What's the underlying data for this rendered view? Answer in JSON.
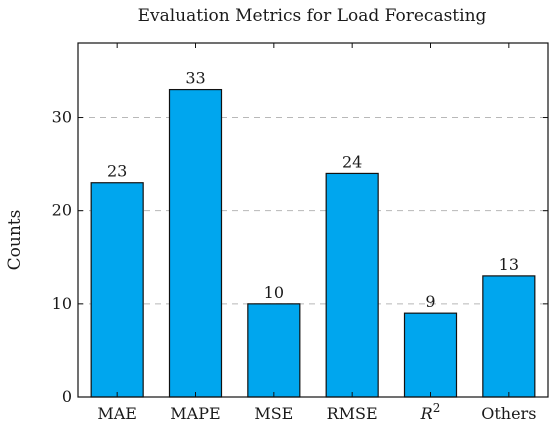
{
  "chart_data": {
    "type": "bar",
    "title": "Evaluation Metrics for Load Forecasting",
    "xlabel": "",
    "ylabel": "Counts",
    "categories": [
      "MAE",
      "MAPE",
      "MSE",
      "RMSE",
      "R2",
      "Others"
    ],
    "values": [
      23,
      33,
      10,
      24,
      9,
      13
    ],
    "ylim": [
      0,
      38
    ],
    "yticks": [
      0,
      10,
      20,
      30
    ],
    "grid": "horizontal dashed",
    "bar_color": "#00A6EE",
    "bar_edge_color": "#111111"
  }
}
